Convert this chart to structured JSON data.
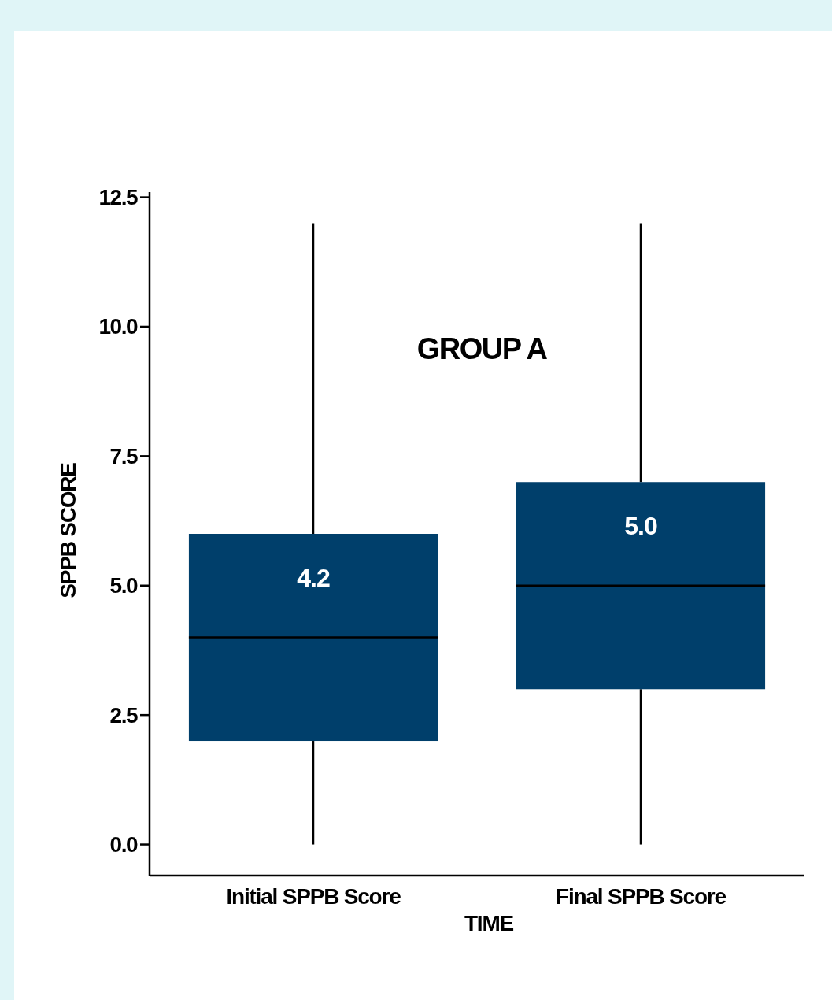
{
  "chart_data": {
    "type": "box",
    "title": "GROUP A",
    "xlabel": "TIME",
    "ylabel": "SPPB SCORE",
    "categories": [
      "Initial SPPB Score",
      "Final SPPB Score"
    ],
    "series": [
      {
        "color": "#003f6b",
        "boxes": [
          {
            "low": 0,
            "q1": 2.0,
            "median": 4.0,
            "q3": 6.0,
            "high": 12.0
          },
          {
            "low": 0,
            "q1": 3.0,
            "median": 5.0,
            "q3": 7.0,
            "high": 12.0
          }
        ]
      }
    ],
    "ylim": [
      -0.6,
      12.6
    ],
    "yticks": [
      {
        "value": 0,
        "label": "0.0"
      },
      2.5,
      {
        "value": 5,
        "label": "5.0"
      },
      7.5,
      {
        "value": 10,
        "label": "10.0"
      },
      12.5
    ],
    "annotations": [
      "4.2",
      "5.0"
    ],
    "grid": false
  }
}
